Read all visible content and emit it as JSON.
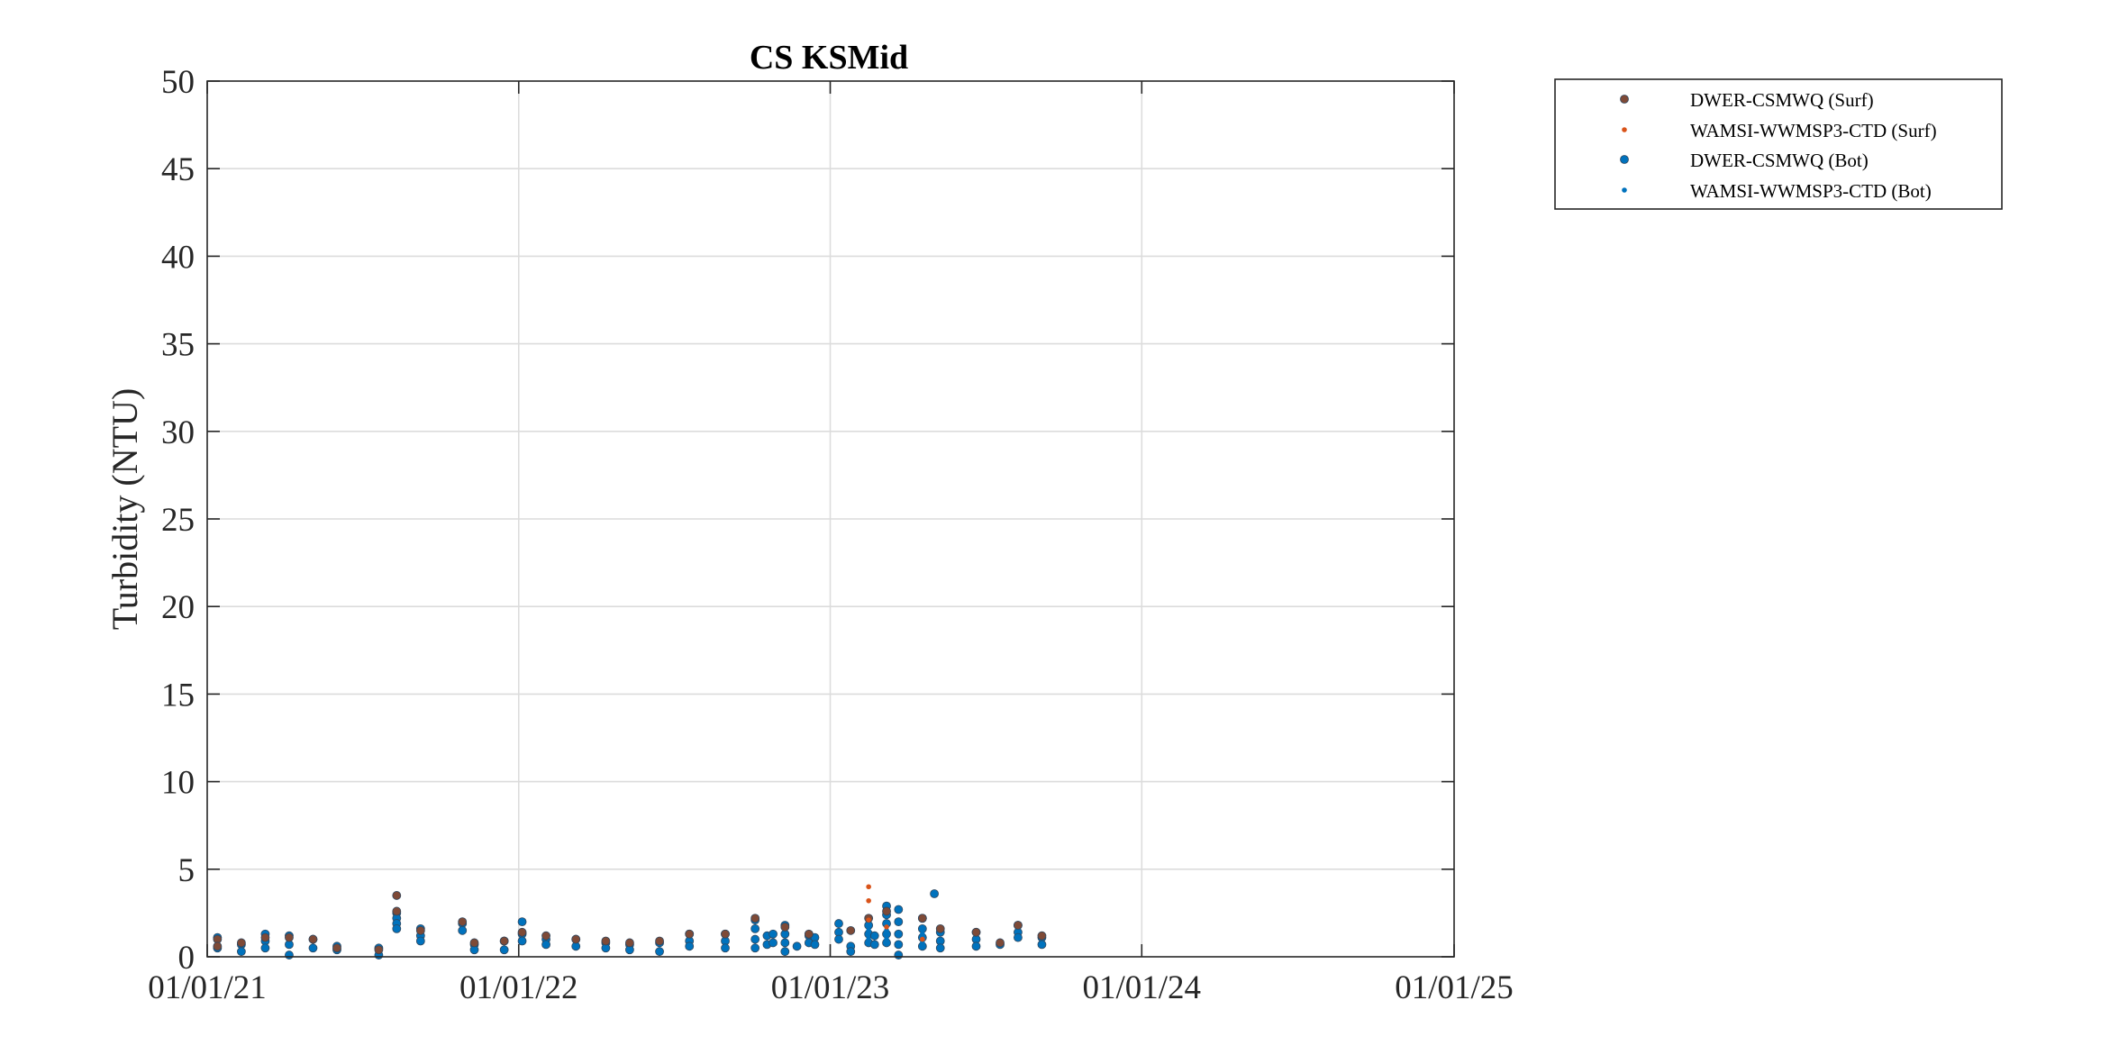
{
  "chart_data": {
    "type": "scatter",
    "title": "CS KSMid",
    "xlabel": "",
    "ylabel": "Turbidity (NTU)",
    "xlim": [
      "01/01/21",
      "01/01/25"
    ],
    "ylim": [
      0,
      50
    ],
    "x_ticks": [
      "01/01/21",
      "01/01/22",
      "01/01/23",
      "01/01/24",
      "01/01/25"
    ],
    "y_ticks": [
      "0",
      "5",
      "10",
      "15",
      "20",
      "25",
      "30",
      "35",
      "40",
      "45",
      "50"
    ],
    "grid": true,
    "legend_position": "outside-top-right",
    "series": [
      {
        "name": "DWER-CSMWQ (Surf)",
        "color": "#7e4a37",
        "marker": "large-dot",
        "points": [
          [
            "2021-01-13",
            1.0
          ],
          [
            "2021-01-13",
            0.6
          ],
          [
            "2021-02-10",
            0.8
          ],
          [
            "2021-03-10",
            1.1
          ],
          [
            "2021-04-07",
            1.1
          ],
          [
            "2021-05-05",
            1.0
          ],
          [
            "2021-06-02",
            0.5
          ],
          [
            "2021-07-21",
            0.4
          ],
          [
            "2021-08-11",
            3.5
          ],
          [
            "2021-08-11",
            2.6
          ],
          [
            "2021-09-08",
            1.5
          ],
          [
            "2021-10-27",
            2.0
          ],
          [
            "2021-11-10",
            0.8
          ],
          [
            "2021-12-15",
            0.9
          ],
          [
            "2022-01-05",
            1.4
          ],
          [
            "2022-02-02",
            1.2
          ],
          [
            "2022-03-09",
            1.0
          ],
          [
            "2022-04-13",
            0.9
          ],
          [
            "2022-05-11",
            0.8
          ],
          [
            "2022-06-15",
            0.9
          ],
          [
            "2022-07-20",
            1.3
          ],
          [
            "2022-08-31",
            1.3
          ],
          [
            "2022-10-05",
            2.2
          ],
          [
            "2022-11-09",
            1.7
          ],
          [
            "2022-12-07",
            1.3
          ],
          [
            "2023-01-25",
            1.5
          ],
          [
            "2023-02-15",
            2.2
          ],
          [
            "2023-03-08",
            2.6
          ],
          [
            "2023-04-19",
            2.2
          ],
          [
            "2023-05-10",
            1.6
          ],
          [
            "2023-06-21",
            1.4
          ],
          [
            "2023-07-19",
            0.8
          ],
          [
            "2023-08-09",
            1.8
          ],
          [
            "2023-09-06",
            1.2
          ]
        ]
      },
      {
        "name": "WAMSI-WWMSP3-CTD (Surf)",
        "color": "#d95319",
        "marker": "small-dot",
        "points": [
          [
            "2023-02-15",
            4.0
          ],
          [
            "2023-02-15",
            3.2
          ],
          [
            "2023-02-15",
            2.1
          ],
          [
            "2023-03-08",
            1.7
          ],
          [
            "2023-04-19",
            1.0
          ]
        ]
      },
      {
        "name": "DWER-CSMWQ (Bot)",
        "color": "#0072bd",
        "marker": "large-dot",
        "points": [
          [
            "2021-01-13",
            1.1
          ],
          [
            "2021-01-13",
            0.5
          ],
          [
            "2021-02-10",
            0.7
          ],
          [
            "2021-02-10",
            0.3
          ],
          [
            "2021-03-10",
            1.3
          ],
          [
            "2021-03-10",
            0.9
          ],
          [
            "2021-03-10",
            0.5
          ],
          [
            "2021-04-07",
            1.2
          ],
          [
            "2021-04-07",
            0.7
          ],
          [
            "2021-04-07",
            0.1
          ],
          [
            "2021-05-05",
            1.0
          ],
          [
            "2021-05-05",
            0.5
          ],
          [
            "2021-06-02",
            0.6
          ],
          [
            "2021-06-02",
            0.4
          ],
          [
            "2021-07-21",
            0.5
          ],
          [
            "2021-07-21",
            0.1
          ],
          [
            "2021-08-11",
            2.5
          ],
          [
            "2021-08-11",
            2.2
          ],
          [
            "2021-08-11",
            1.9
          ],
          [
            "2021-08-11",
            1.6
          ],
          [
            "2021-09-08",
            1.6
          ],
          [
            "2021-09-08",
            1.2
          ],
          [
            "2021-09-08",
            0.9
          ],
          [
            "2021-10-27",
            1.9
          ],
          [
            "2021-10-27",
            1.5
          ],
          [
            "2021-11-10",
            0.7
          ],
          [
            "2021-11-10",
            0.4
          ],
          [
            "2021-12-15",
            0.9
          ],
          [
            "2021-12-15",
            0.4
          ],
          [
            "2022-01-05",
            2.0
          ],
          [
            "2022-01-05",
            1.3
          ],
          [
            "2022-01-05",
            0.9
          ],
          [
            "2022-02-02",
            1.0
          ],
          [
            "2022-02-02",
            0.7
          ],
          [
            "2022-03-09",
            1.0
          ],
          [
            "2022-03-09",
            0.6
          ],
          [
            "2022-04-13",
            0.8
          ],
          [
            "2022-04-13",
            0.5
          ],
          [
            "2022-05-11",
            0.7
          ],
          [
            "2022-05-11",
            0.4
          ],
          [
            "2022-06-15",
            0.8
          ],
          [
            "2022-06-15",
            0.3
          ],
          [
            "2022-07-20",
            1.3
          ],
          [
            "2022-07-20",
            0.9
          ],
          [
            "2022-07-20",
            0.6
          ],
          [
            "2022-08-31",
            1.3
          ],
          [
            "2022-08-31",
            0.9
          ],
          [
            "2022-08-31",
            0.5
          ],
          [
            "2022-10-05",
            2.1
          ],
          [
            "2022-10-05",
            1.6
          ],
          [
            "2022-10-05",
            1.0
          ],
          [
            "2022-10-05",
            0.5
          ],
          [
            "2022-10-19",
            1.2
          ],
          [
            "2022-10-19",
            0.7
          ],
          [
            "2022-10-26",
            1.3
          ],
          [
            "2022-10-26",
            0.8
          ],
          [
            "2022-11-09",
            1.8
          ],
          [
            "2022-11-09",
            1.3
          ],
          [
            "2022-11-09",
            0.8
          ],
          [
            "2022-11-09",
            0.3
          ],
          [
            "2022-11-23",
            0.6
          ],
          [
            "2022-12-07",
            1.2
          ],
          [
            "2022-12-07",
            0.8
          ],
          [
            "2022-12-14",
            1.1
          ],
          [
            "2022-12-14",
            0.7
          ],
          [
            "2023-01-11",
            1.9
          ],
          [
            "2023-01-11",
            1.4
          ],
          [
            "2023-01-11",
            1.0
          ],
          [
            "2023-01-25",
            0.6
          ],
          [
            "2023-01-25",
            0.3
          ],
          [
            "2023-02-15",
            1.8
          ],
          [
            "2023-02-15",
            1.3
          ],
          [
            "2023-02-15",
            0.8
          ],
          [
            "2023-02-22",
            1.2
          ],
          [
            "2023-02-22",
            0.7
          ],
          [
            "2023-03-08",
            2.9
          ],
          [
            "2023-03-08",
            2.4
          ],
          [
            "2023-03-08",
            1.9
          ],
          [
            "2023-03-08",
            1.3
          ],
          [
            "2023-03-08",
            0.8
          ],
          [
            "2023-03-22",
            2.7
          ],
          [
            "2023-03-22",
            2.0
          ],
          [
            "2023-03-22",
            1.3
          ],
          [
            "2023-03-22",
            0.7
          ],
          [
            "2023-03-22",
            0.1
          ],
          [
            "2023-04-19",
            2.2
          ],
          [
            "2023-04-19",
            1.6
          ],
          [
            "2023-04-19",
            1.1
          ],
          [
            "2023-04-19",
            0.6
          ],
          [
            "2023-05-03",
            3.6
          ],
          [
            "2023-05-10",
            1.4
          ],
          [
            "2023-05-10",
            0.9
          ],
          [
            "2023-05-10",
            0.5
          ],
          [
            "2023-06-21",
            1.4
          ],
          [
            "2023-06-21",
            1.0
          ],
          [
            "2023-06-21",
            0.6
          ],
          [
            "2023-07-19",
            0.7
          ],
          [
            "2023-08-09",
            1.8
          ],
          [
            "2023-08-09",
            1.4
          ],
          [
            "2023-08-09",
            1.1
          ],
          [
            "2023-09-06",
            1.1
          ],
          [
            "2023-09-06",
            0.7
          ]
        ]
      },
      {
        "name": "WAMSI-WWMSP3-CTD (Bot)",
        "color": "#0072bd",
        "marker": "small-dot",
        "points": [
          [
            "2023-02-15",
            1.5
          ],
          [
            "2023-02-15",
            1.0
          ],
          [
            "2023-03-08",
            1.5
          ],
          [
            "2023-03-08",
            1.0
          ],
          [
            "2023-04-19",
            1.3
          ],
          [
            "2023-04-19",
            0.8
          ]
        ]
      }
    ]
  }
}
